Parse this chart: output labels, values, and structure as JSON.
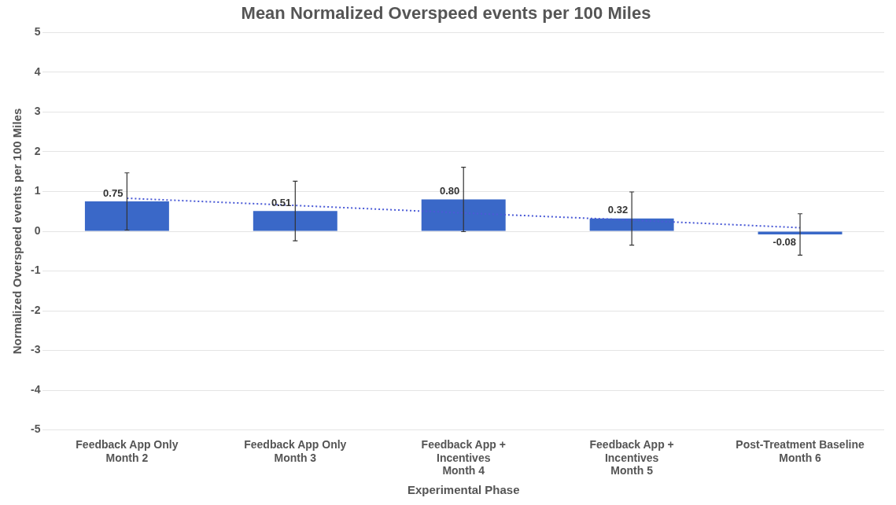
{
  "chart_data": {
    "type": "bar",
    "title": "Mean Normalized Overspeed events per 100 Miles",
    "xlabel": "Experimental Phase",
    "ylabel": "Normalized Overspeed events per 100 Miles",
    "categories": [
      "Feedback App Only\nMonth 2",
      "Feedback App Only\nMonth 3",
      "Feedback App +\nIncentives\nMonth 4",
      "Feedback App +\nIncentives\nMonth 5",
      "Post-Treatment Baseline\nMonth 6"
    ],
    "series": [
      {
        "color": "#3a68c8",
        "values": [
          0.75,
          0.51,
          0.8,
          0.32,
          -0.08
        ],
        "errors": [
          0.72,
          0.75,
          0.81,
          0.67,
          0.52
        ],
        "value_labels": [
          "0.75",
          "0.51",
          "0.80",
          "0.32",
          "-0.08"
        ]
      },
      {
        "type": "line",
        "color": "#4a5ad6",
        "line_style": "dotted",
        "marker": "none",
        "x": [
          "Feedback App Only\nMonth 2",
          "Feedback App Only\nMonth 3",
          "Feedback App +\nIncentives\nMonth 4",
          "Feedback App +\nIncentives\nMonth 5",
          "Post-Treatment Baseline\nMonth 6"
        ],
        "values": [
          0.83,
          0.65,
          0.46,
          0.28,
          0.09
        ]
      }
    ],
    "ylim": [
      -5,
      5
    ],
    "yticks": [
      -5,
      -4,
      -3,
      -2,
      -1,
      0,
      1,
      2,
      3,
      4,
      5
    ],
    "grid": "y",
    "legend": false
  }
}
